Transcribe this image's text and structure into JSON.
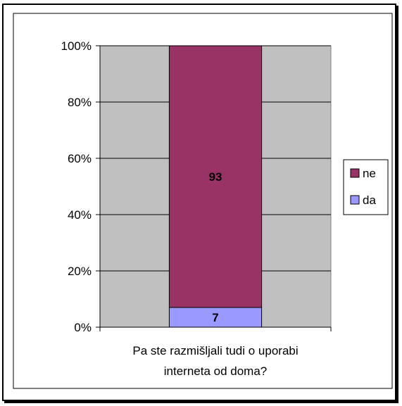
{
  "chart_data": {
    "type": "bar",
    "stacked": true,
    "normalized": true,
    "categories": [
      "Pa ste razmišljali tudi o uporabi interneta od doma?"
    ],
    "series": [
      {
        "name": "da",
        "values": [
          7
        ],
        "color": "#9999ff"
      },
      {
        "name": "ne",
        "values": [
          93
        ],
        "color": "#993366"
      }
    ],
    "y_ticks": [
      "0%",
      "20%",
      "40%",
      "60%",
      "80%",
      "100%"
    ],
    "ylim": [
      0,
      100
    ],
    "grid": true,
    "legend": "right",
    "plot_background": "#c0c0c0",
    "category_label_lines": [
      "Pa ste razmišljali tudi o uporabi",
      "interneta od doma?"
    ]
  }
}
